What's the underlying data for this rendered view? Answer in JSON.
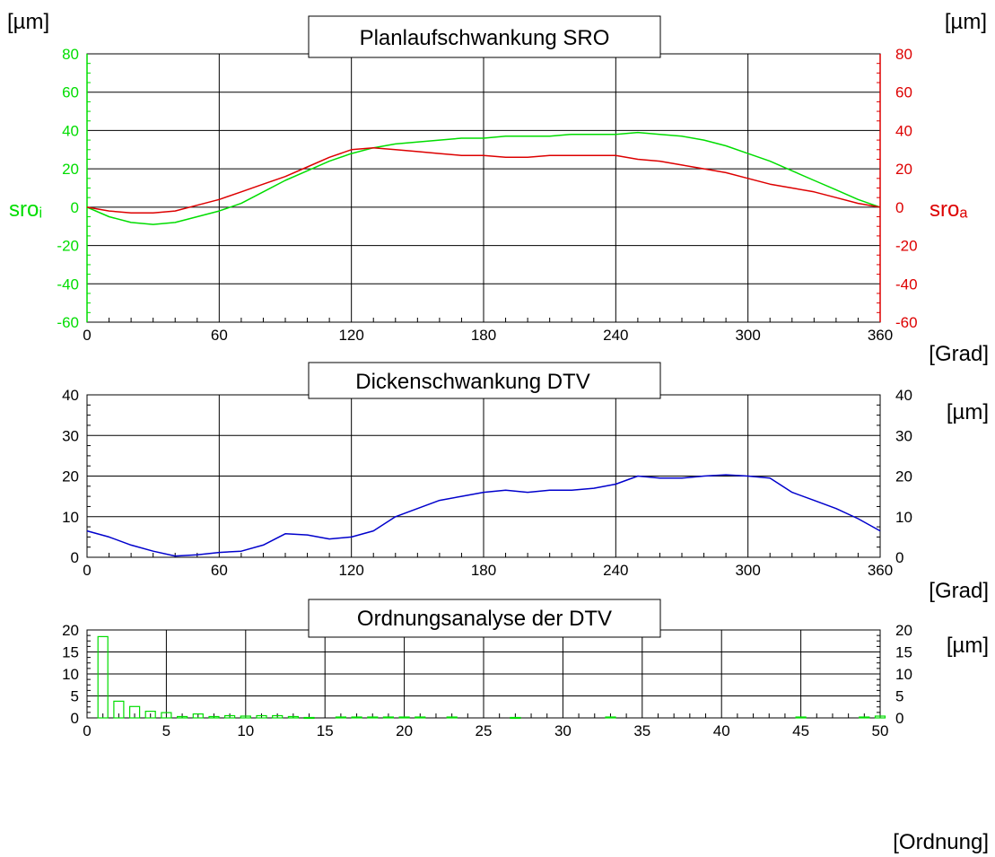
{
  "colors": {
    "sro_i": "#00dd00",
    "sro_a": "#dd0000",
    "dtv": "#0000cc",
    "order_bars": "#00dd00",
    "grid": "#000000"
  },
  "chart_data": [
    {
      "type": "line",
      "title": "Planlaufschwankung SRO",
      "unit_left": "[µm]",
      "unit_right": "[µm]",
      "xlabel": "[Grad]",
      "ylabel_left": "sroᵢ",
      "ylabel_right": "sroₐ",
      "xlim": [
        0,
        360
      ],
      "ylim": [
        -60,
        80
      ],
      "x_ticks": [
        "0",
        "60",
        "120",
        "180",
        "240",
        "300",
        "360"
      ],
      "y_ticks_left": [
        "-60",
        "-40",
        "-20",
        "0",
        "20",
        "40",
        "60",
        "80"
      ],
      "y_ticks_right": [
        "-60",
        "-40",
        "-20",
        "0",
        "20",
        "40",
        "60",
        "80"
      ],
      "grid": true,
      "series": [
        {
          "key": "sro_i",
          "x": [
            0,
            10,
            20,
            30,
            40,
            50,
            60,
            70,
            80,
            90,
            100,
            110,
            120,
            130,
            140,
            150,
            160,
            170,
            180,
            190,
            200,
            210,
            220,
            230,
            240,
            250,
            260,
            270,
            280,
            290,
            300,
            310,
            320,
            330,
            340,
            350,
            360
          ],
          "values": [
            0,
            -5,
            -8,
            -9,
            -8,
            -5,
            -2,
            2,
            8,
            14,
            19,
            24,
            28,
            31,
            33,
            34,
            35,
            36,
            36,
            37,
            37,
            37,
            38,
            38,
            38,
            39,
            38,
            37,
            35,
            32,
            28,
            24,
            19,
            14,
            9,
            4,
            0
          ]
        },
        {
          "key": "sro_a",
          "x": [
            0,
            10,
            20,
            30,
            40,
            50,
            60,
            70,
            80,
            90,
            100,
            110,
            120,
            130,
            140,
            150,
            160,
            170,
            180,
            190,
            200,
            210,
            220,
            230,
            240,
            250,
            260,
            270,
            280,
            290,
            300,
            310,
            320,
            330,
            340,
            350,
            360
          ],
          "values": [
            0,
            -2,
            -3,
            -3,
            -2,
            1,
            4,
            8,
            12,
            16,
            21,
            26,
            30,
            31,
            30,
            29,
            28,
            27,
            27,
            26,
            26,
            27,
            27,
            27,
            27,
            25,
            24,
            22,
            20,
            18,
            15,
            12,
            10,
            8,
            5,
            2,
            0
          ]
        }
      ]
    },
    {
      "type": "line",
      "title": "Dickenschwankung DTV",
      "unit_right": "[µm]",
      "xlabel": "[Grad]",
      "xlim": [
        0,
        360
      ],
      "ylim": [
        0,
        40
      ],
      "x_ticks": [
        "0",
        "60",
        "120",
        "180",
        "240",
        "300",
        "360"
      ],
      "y_ticks_left": [
        "0",
        "10",
        "20",
        "30",
        "40"
      ],
      "y_ticks_right": [
        "0",
        "10",
        "20",
        "30",
        "40"
      ],
      "grid": true,
      "series": [
        {
          "key": "dtv",
          "x": [
            0,
            10,
            20,
            30,
            40,
            50,
            60,
            70,
            80,
            90,
            100,
            110,
            120,
            130,
            140,
            150,
            160,
            170,
            180,
            190,
            200,
            210,
            220,
            230,
            240,
            250,
            260,
            270,
            280,
            290,
            300,
            310,
            320,
            330,
            340,
            350,
            360
          ],
          "values": [
            6.5,
            5,
            3,
            1.5,
            0.3,
            0.6,
            1.2,
            1.5,
            3,
            5.8,
            5.5,
            4.5,
            5,
            6.5,
            10,
            12,
            14,
            15,
            16,
            16.5,
            16,
            16.5,
            16.5,
            17,
            18,
            20,
            19.5,
            19.5,
            20,
            20.3,
            20,
            19.5,
            16,
            14,
            12,
            9.5,
            6.5
          ]
        }
      ]
    },
    {
      "type": "bar",
      "title": "Ordnungsanalyse der DTV",
      "unit_right": "[µm]",
      "xlabel": "[Ordnung]",
      "xlim": [
        0,
        50
      ],
      "ylim": [
        0,
        20
      ],
      "x_ticks": [
        "0",
        "5",
        "10",
        "15",
        "20",
        "25",
        "30",
        "35",
        "40",
        "45",
        "50"
      ],
      "y_ticks_left": [
        "0",
        "5",
        "10",
        "15",
        "20"
      ],
      "y_ticks_right": [
        "0",
        "5",
        "10",
        "15",
        "20"
      ],
      "grid": true,
      "orders": [
        1,
        2,
        3,
        4,
        5,
        6,
        7,
        8,
        9,
        10,
        11,
        12,
        13,
        14,
        16,
        17,
        18,
        19,
        20,
        21,
        23,
        27,
        33,
        45,
        49,
        50
      ],
      "values": [
        18.5,
        3.8,
        2.6,
        1.5,
        1.2,
        0.3,
        0.9,
        0.3,
        0.5,
        0.4,
        0.5,
        0.5,
        0.3,
        0.1,
        0.2,
        0.2,
        0.2,
        0.2,
        0.2,
        0.2,
        0.2,
        0.1,
        0.2,
        0.2,
        0.2,
        0.4
      ]
    }
  ]
}
